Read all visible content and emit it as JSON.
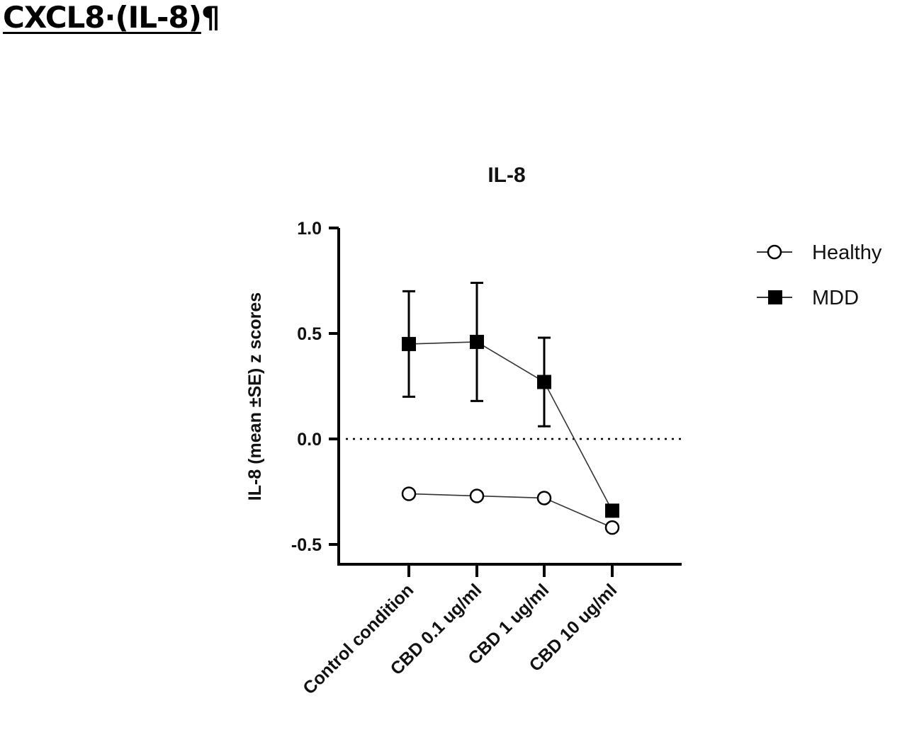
{
  "document": {
    "heading": "CXCL8·(IL-8)",
    "pilcrow": "¶"
  },
  "chart_data": {
    "type": "line",
    "title": "IL-8",
    "xlabel": "",
    "ylabel": "IL-8 (mean ±SE) z scores",
    "categories": [
      "Control condition",
      "CBD 0.1 ug/ml",
      "CBD 1 ug/ml",
      "CBD 10 ug/ml"
    ],
    "ylim": [
      -0.59,
      1.0
    ],
    "yticks": [
      -0.5,
      0.0,
      0.5,
      1.0
    ],
    "ytick_labels": [
      "-0.5",
      "0.0",
      "0.5",
      "1.0"
    ],
    "reference_line": {
      "y": 0.0,
      "style": "dotted"
    },
    "legend_position": "right",
    "series": [
      {
        "name": "Healthy",
        "marker": "open-circle",
        "color": "#000000",
        "values": [
          -0.26,
          -0.27,
          -0.28,
          -0.42
        ],
        "error": [
          0,
          0,
          0,
          0
        ]
      },
      {
        "name": "MDD",
        "marker": "filled-square",
        "color": "#000000",
        "values": [
          0.45,
          0.46,
          0.27,
          -0.34
        ],
        "error": [
          0.25,
          0.28,
          0.21,
          0.02
        ]
      }
    ]
  }
}
